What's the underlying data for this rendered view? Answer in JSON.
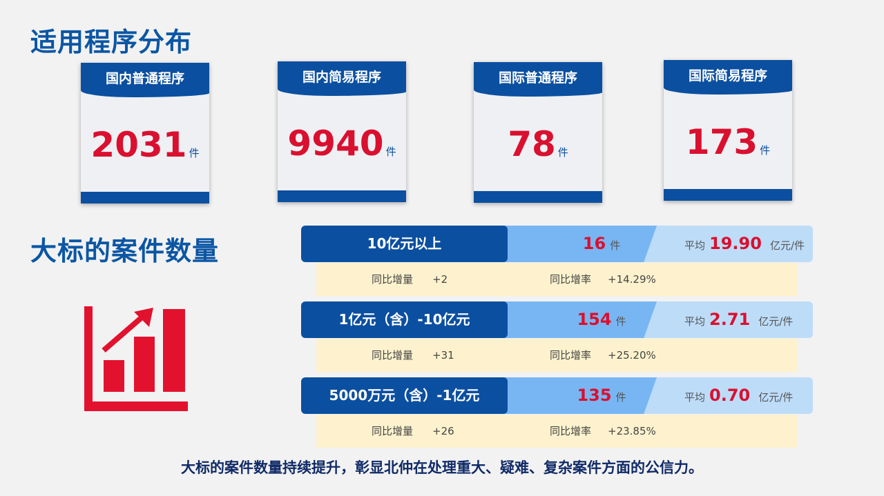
{
  "section1": {
    "title": "适用程序分布",
    "cards": [
      {
        "label": "国内普通程序",
        "value": "2031",
        "unit": "件"
      },
      {
        "label": "国内简易程序",
        "value": "9940",
        "unit": "件"
      },
      {
        "label": "国际普通程序",
        "value": "78",
        "unit": "件"
      },
      {
        "label": "国际简易程序",
        "value": "173",
        "unit": "件"
      }
    ]
  },
  "section2": {
    "title": "大标的案件数量",
    "icon": "bar-chart-rising-arrow-icon",
    "rows": [
      {
        "label": "10亿元以上",
        "count": "16",
        "unit": "件",
        "avg_label": "平均",
        "avg": "19.90",
        "avg_unit": "亿元/件",
        "inc_label": "同比增量",
        "inc": "+2",
        "rate_label": "同比增率",
        "rate": "+14.29%"
      },
      {
        "label": "1亿元（含）-10亿元",
        "count": "154",
        "unit": "件",
        "avg_label": "平均",
        "avg": "2.71",
        "avg_unit": "亿元/件",
        "inc_label": "同比增量",
        "inc": "+31",
        "rate_label": "同比增率",
        "rate": "+25.20%"
      },
      {
        "label": "5000万元（含）-1亿元",
        "count": "135",
        "unit": "件",
        "avg_label": "平均",
        "avg": "0.70",
        "avg_unit": "亿元/件",
        "inc_label": "同比增量",
        "inc": "+26",
        "rate_label": "同比增率",
        "rate": "+23.85%"
      }
    ]
  },
  "footer": "大标的案件数量持续提升，彰显北仲在处理重大、疑难、复杂案件方面的公信力。",
  "colors": {
    "primary": "#0b4fa0",
    "accent": "#d9102f",
    "highlight": "#fdf2cd"
  }
}
